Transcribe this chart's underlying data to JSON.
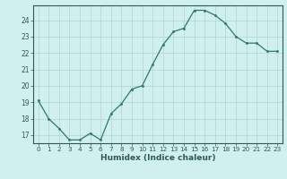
{
  "x": [
    0,
    1,
    2,
    3,
    4,
    5,
    6,
    7,
    8,
    9,
    10,
    11,
    12,
    13,
    14,
    15,
    16,
    17,
    18,
    19,
    20,
    21,
    22,
    23
  ],
  "y": [
    19.1,
    18.0,
    17.4,
    16.7,
    16.7,
    17.1,
    16.7,
    18.3,
    18.9,
    19.8,
    20.0,
    21.3,
    22.5,
    23.3,
    23.5,
    24.6,
    24.6,
    24.3,
    23.8,
    23.0,
    22.6,
    22.6,
    22.1,
    22.1
  ],
  "line_color": "#2d7a6a",
  "marker_color": "#2d7a6a",
  "bg_color": "#cff0ec",
  "grid_color": "#b0d4d0",
  "xlabel": "Humidex (Indice chaleur)",
  "yticks": [
    17,
    18,
    19,
    20,
    21,
    22,
    23,
    24
  ],
  "xticks": [
    0,
    1,
    2,
    3,
    4,
    5,
    6,
    7,
    8,
    9,
    10,
    11,
    12,
    13,
    14,
    15,
    16,
    17,
    18,
    19,
    20,
    21,
    22,
    23
  ],
  "ylim": [
    16.5,
    24.9
  ],
  "xlim": [
    -0.5,
    23.5
  ],
  "tick_color": "#2d5a54",
  "spine_color": "#2d5a54"
}
